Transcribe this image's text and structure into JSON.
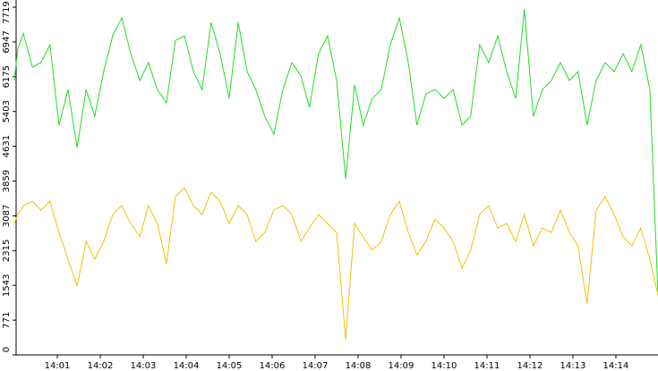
{
  "chart_data": {
    "type": "line",
    "x": [
      0,
      0.08,
      0.21,
      0.42,
      0.62,
      0.83,
      1.04,
      1.25,
      1.46,
      1.67,
      1.87,
      2.08,
      2.29,
      2.5,
      2.71,
      2.92,
      3.12,
      3.33,
      3.54,
      3.75,
      3.96,
      4.17,
      4.37,
      4.58,
      4.79,
      5.0,
      5.21,
      5.42,
      5.62,
      5.83,
      6.04,
      6.25,
      6.46,
      6.67,
      6.87,
      7.08,
      7.29,
      7.5,
      7.71,
      7.92,
      8.12,
      8.33,
      8.54,
      8.75,
      8.96,
      9.17,
      9.37,
      9.58,
      9.79,
      10.0,
      10.21,
      10.42,
      10.62,
      10.83,
      11.04,
      11.25,
      11.46,
      11.67,
      11.87,
      12.08,
      12.29,
      12.5,
      12.71,
      12.92,
      13.12,
      13.33,
      13.54,
      13.75,
      13.96,
      14.17,
      14.37,
      14.58,
      14.79,
      14.98
    ],
    "series": [
      {
        "color": "#22dd22",
        "values": [
          6091,
          6785,
          7134,
          6388,
          6488,
          6884,
          5099,
          5892,
          4603,
          5892,
          5297,
          6289,
          7083,
          7480,
          6686,
          6091,
          6488,
          5892,
          5595,
          6983,
          7083,
          6289,
          5892,
          7380,
          6686,
          5694,
          7380,
          6289,
          5892,
          5297,
          4901,
          5892,
          6488,
          6190,
          5495,
          6686,
          7083,
          6091,
          3908,
          5992,
          5099,
          5694,
          5892,
          6884,
          7480,
          6488,
          5099,
          5793,
          5892,
          5694,
          5892,
          5099,
          5297,
          6884,
          6488,
          7083,
          6289,
          5694,
          7678,
          5297,
          5892,
          6091,
          6488,
          6091,
          6289,
          5099,
          6091,
          6488,
          6289,
          6686,
          6289,
          6884,
          5892,
          1329
        ]
      },
      {
        "color": "#f5c000",
        "values": [
          2916,
          3115,
          3313,
          3412,
          3214,
          3412,
          2718,
          2123,
          1528,
          2520,
          2123,
          2520,
          3115,
          3313,
          2916,
          2619,
          3313,
          2916,
          2024,
          3512,
          3710,
          3313,
          3115,
          3611,
          3412,
          2916,
          3313,
          3115,
          2520,
          2718,
          3214,
          3313,
          3115,
          2520,
          2817,
          3115,
          2916,
          2718,
          337,
          2916,
          2619,
          2321,
          2520,
          3115,
          3412,
          2718,
          2222,
          2520,
          3016,
          2817,
          2520,
          1924,
          2321,
          3115,
          3313,
          2817,
          2916,
          2520,
          3115,
          2420,
          2817,
          2718,
          3214,
          2718,
          2420,
          1131,
          3214,
          3512,
          3115,
          2619,
          2420,
          2817,
          2123,
          1329
        ]
      }
    ],
    "xlim": [
      0,
      14.98
    ],
    "xticks": [
      {
        "value": 1,
        "label": "14:01"
      },
      {
        "value": 2,
        "label": "14:02"
      },
      {
        "value": 3,
        "label": "14:03"
      },
      {
        "value": 4,
        "label": "14:04"
      },
      {
        "value": 5,
        "label": "14:05"
      },
      {
        "value": 6,
        "label": "14:06"
      },
      {
        "value": 7,
        "label": "14:07"
      },
      {
        "value": 8,
        "label": "14:08"
      },
      {
        "value": 9,
        "label": "14:09"
      },
      {
        "value": 10,
        "label": "14:10"
      },
      {
        "value": 11,
        "label": "14:11"
      },
      {
        "value": 12,
        "label": "14:12"
      },
      {
        "value": 13,
        "label": "14:13"
      },
      {
        "value": 14,
        "label": "14:14"
      }
    ],
    "ylim": [
      0,
      7719
    ],
    "yticks": [
      0,
      771,
      1543,
      2315,
      3087,
      3859,
      4631,
      5403,
      6175,
      6947,
      7719
    ]
  }
}
